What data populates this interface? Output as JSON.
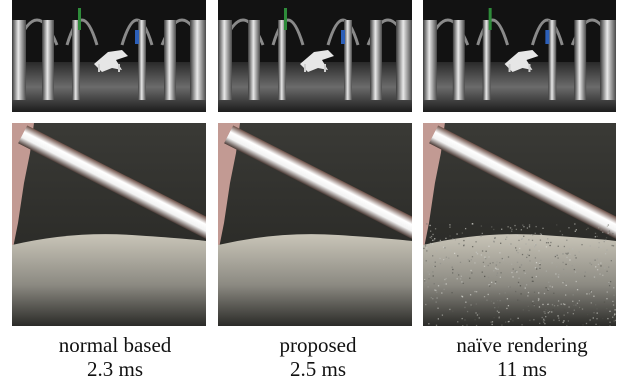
{
  "figure": {
    "columns": [
      {
        "method": "normal based",
        "time": "2.3 ms",
        "noise": "smooth"
      },
      {
        "method": "proposed",
        "time": "2.5 ms",
        "noise": "smooth"
      },
      {
        "method": "naïve rendering",
        "time": "11 ms",
        "noise": "grainy"
      }
    ]
  }
}
